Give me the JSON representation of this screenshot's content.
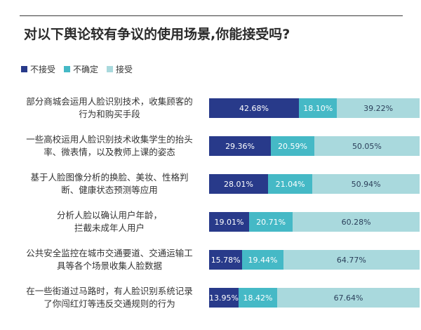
{
  "title": "对以下舆论较有争议的使用场景,你能接受吗?",
  "colors": {
    "not_accept": "#283a8a",
    "uncertain": "#45b9c6",
    "accept": "#a9d9dd"
  },
  "chart_data": {
    "type": "bar",
    "stacked": true,
    "orientation": "horizontal",
    "title": "对以下舆论较有争议的使用场景,你能接受吗?",
    "legend": [
      "不接受",
      "不确定",
      "接受"
    ],
    "legend_position": "top-left",
    "xlim": [
      0,
      100
    ],
    "categories": [
      {
        "line1": "部分商城会运用人脸识别技术，收集顾客的",
        "line2": "行为和购买手段"
      },
      {
        "line1": "一些高校运用人脸识别技术收集学生的抬头",
        "line2": "率、微表情，以及教师上课的姿态"
      },
      {
        "line1": "基于人脸图像分析的换脸、美妆、性格判",
        "line2": "断、健康状态预测等应用"
      },
      {
        "line1": "分析人脸以确认用户年龄，",
        "line2": "拦截未成年人用户"
      },
      {
        "line1": "公共安全监控在城市交通要道、交通运输工",
        "line2": "具等各个场景收集人脸数据"
      },
      {
        "line1": "在一些街道过马路时，有人脸识别系统记录",
        "line2": "了你闯红灯等违反交通规则的行为"
      }
    ],
    "series": [
      {
        "name": "不接受",
        "values": [
          42.68,
          29.36,
          28.01,
          19.01,
          15.78,
          13.95
        ],
        "labels": [
          "42.68%",
          "29.36%",
          "28.01%",
          "19.01%",
          "15.78%",
          "13.95%"
        ]
      },
      {
        "name": "不确定",
        "values": [
          18.1,
          20.59,
          21.04,
          20.71,
          19.44,
          18.42
        ],
        "labels": [
          "18.10%",
          "20.59%",
          "21.04%",
          "20.71%",
          "19.44%",
          "18.42%"
        ]
      },
      {
        "name": "接受",
        "values": [
          39.22,
          50.05,
          50.94,
          60.28,
          64.77,
          67.64
        ],
        "labels": [
          "39.22%",
          "50.05%",
          "50.94%",
          "60.28%",
          "64.77%",
          "67.64%"
        ]
      }
    ]
  }
}
